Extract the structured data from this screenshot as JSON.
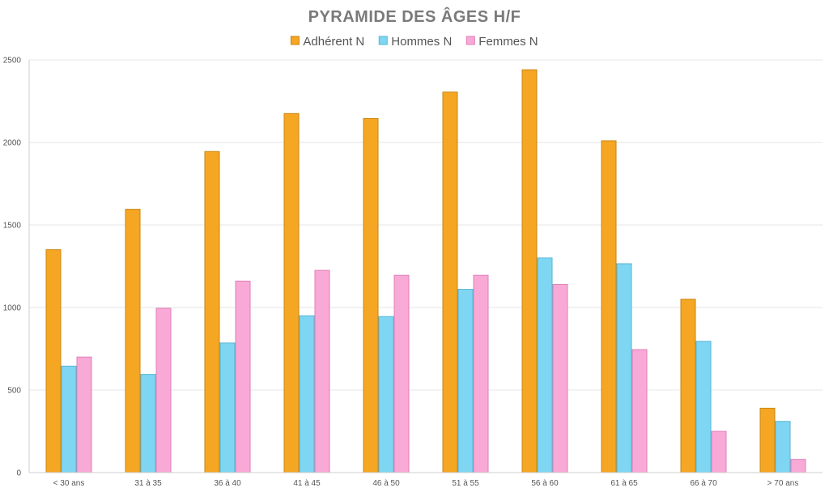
{
  "chart_data": {
    "type": "bar",
    "title": "PYRAMIDE DES ÂGES H/F",
    "categories": [
      "< 30 ans",
      "31 à 35",
      "36 à 40",
      "41 à 45",
      "46 à 50",
      "51 à 55",
      "56 à 60",
      "61 à 65",
      "66 à 70",
      "> 70 ans"
    ],
    "series": [
      {
        "name": "Adhérent N",
        "color": "#f5a623",
        "edge": "#c98612",
        "values": [
          1350,
          1595,
          1945,
          2175,
          2145,
          2305,
          2440,
          2010,
          1050,
          390
        ]
      },
      {
        "name": "Hommes N",
        "color": "#7fd6f2",
        "edge": "#56b6d6",
        "values": [
          645,
          595,
          785,
          950,
          945,
          1110,
          1300,
          1265,
          795,
          310
        ]
      },
      {
        "name": "Femmes N",
        "color": "#f9a9d6",
        "edge": "#e07fb8",
        "values": [
          700,
          995,
          1160,
          1225,
          1195,
          1195,
          1140,
          745,
          250,
          80
        ]
      }
    ],
    "yticks": [
      0,
      500,
      1000,
      1500,
      2000,
      2500
    ],
    "ylim": [
      0,
      2500
    ],
    "legend_position": "top-center",
    "grid": true
  }
}
